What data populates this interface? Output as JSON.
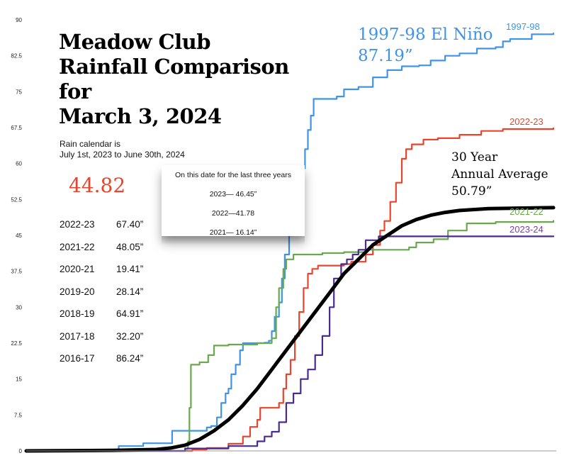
{
  "title": {
    "line1": "Meadow Club",
    "line2": "Rainfall Comparison",
    "line3": "for",
    "line4": "March 3, 2024"
  },
  "subtitle": {
    "line1": "Rain calendar is",
    "line2": "July 1st, 2023 to June 30th, 2024"
  },
  "current_total": "44.82",
  "season_totals": [
    {
      "season": "2022-23",
      "total": "67.40”"
    },
    {
      "season": "2021-22",
      "total": "48.05”"
    },
    {
      "season": "2020-21",
      "total": "19.41”"
    },
    {
      "season": "2019-20",
      "total": "28.14”"
    },
    {
      "season": "2018-19",
      "total": "64.91”"
    },
    {
      "season": "2017-18",
      "total": "32.20”"
    },
    {
      "season": "2016-17",
      "total": "86.24”"
    }
  ],
  "callout": {
    "title": "On this date for the last three years",
    "lines": [
      "2023— 46.45”",
      "2022—41.78",
      "2021— 16.14”"
    ]
  },
  "annotations": {
    "nino_line1": "1997-98 El Niño",
    "nino_line2": "87.19”",
    "avg_line1": "30 Year",
    "avg_line2": "Annual Average",
    "avg_line3": "50.79”"
  },
  "chart_data": {
    "type": "line",
    "title": "Meadow Club Rainfall Comparison for March 3, 2024",
    "xlabel": "",
    "ylabel": "",
    "x_unit": "day of rain season (from July 1)",
    "xlim": [
      0,
      365
    ],
    "ylim": [
      0,
      90
    ],
    "yticks": [
      0,
      7.5,
      15,
      22.5,
      30,
      37.5,
      45,
      52.5,
      60,
      67.5,
      75,
      82.5,
      90
    ],
    "ytick_labels": [
      "0",
      "7.5",
      "15",
      "22.5",
      "30",
      "37.5",
      "45",
      "52.5",
      "60",
      "67.5",
      "75",
      "82.5",
      "90"
    ],
    "series": [
      {
        "name": "1997-98",
        "color": "#3f94e8",
        "points": [
          [
            0,
            0
          ],
          [
            63,
            0
          ],
          [
            64,
            1
          ],
          [
            80,
            1
          ],
          [
            81,
            1.6
          ],
          [
            100,
            1.6
          ],
          [
            101,
            4.2
          ],
          [
            124,
            4.2
          ],
          [
            125,
            4.9
          ],
          [
            128,
            5.2
          ],
          [
            132,
            7
          ],
          [
            135,
            10
          ],
          [
            138,
            12
          ],
          [
            140,
            13
          ],
          [
            142,
            16
          ],
          [
            145,
            18
          ],
          [
            148,
            21
          ],
          [
            150,
            22.5
          ],
          [
            165,
            22.6
          ],
          [
            168,
            23
          ],
          [
            170,
            25
          ],
          [
            172,
            28
          ],
          [
            175,
            31
          ],
          [
            177,
            36
          ],
          [
            179,
            41
          ],
          [
            182,
            45
          ],
          [
            185,
            50
          ],
          [
            188,
            55
          ],
          [
            190,
            59
          ],
          [
            193,
            63
          ],
          [
            195,
            67
          ],
          [
            197,
            70
          ],
          [
            199,
            73.5
          ],
          [
            215,
            74
          ],
          [
            220,
            75.5
          ],
          [
            230,
            76
          ],
          [
            240,
            78
          ],
          [
            250,
            79.5
          ],
          [
            260,
            80.3
          ],
          [
            272,
            80.5
          ],
          [
            280,
            81.5
          ],
          [
            290,
            82.5
          ],
          [
            300,
            83
          ],
          [
            312,
            84
          ],
          [
            325,
            84.3
          ],
          [
            330,
            85.5
          ],
          [
            335,
            86
          ],
          [
            350,
            87
          ],
          [
            365,
            87.19
          ]
        ]
      },
      {
        "name": "2022-23",
        "color": "#e8452c",
        "points": [
          [
            0,
            0
          ],
          [
            100,
            0
          ],
          [
            115,
            0.3
          ],
          [
            125,
            0.6
          ],
          [
            140,
            1.5
          ],
          [
            150,
            3
          ],
          [
            155,
            5
          ],
          [
            160,
            6.5
          ],
          [
            162,
            9
          ],
          [
            170,
            9
          ],
          [
            175,
            10
          ],
          [
            178,
            13
          ],
          [
            180,
            16
          ],
          [
            183,
            19
          ],
          [
            186,
            24
          ],
          [
            189,
            29
          ],
          [
            192,
            34
          ],
          [
            195,
            37
          ],
          [
            198,
            38
          ],
          [
            202,
            38.7
          ],
          [
            215,
            38.7
          ],
          [
            220,
            39
          ],
          [
            225,
            39.5
          ],
          [
            235,
            41
          ],
          [
            240,
            43
          ],
          [
            245,
            46
          ],
          [
            248,
            48
          ],
          [
            252,
            52
          ],
          [
            256,
            56
          ],
          [
            260,
            61
          ],
          [
            263,
            63
          ],
          [
            267,
            64
          ],
          [
            275,
            65
          ],
          [
            285,
            65.3
          ],
          [
            300,
            66
          ],
          [
            315,
            66.8
          ],
          [
            330,
            67.2
          ],
          [
            365,
            67.4
          ]
        ]
      },
      {
        "name": "2021-22",
        "color": "#6aa84f",
        "points": [
          [
            0,
            0
          ],
          [
            80,
            0
          ],
          [
            110,
            0.4
          ],
          [
            112,
            2
          ],
          [
            113,
            9
          ],
          [
            114,
            18
          ],
          [
            120,
            18.5
          ],
          [
            126,
            20
          ],
          [
            130,
            22
          ],
          [
            140,
            22.2
          ],
          [
            160,
            22.5
          ],
          [
            170,
            23.5
          ],
          [
            173,
            30
          ],
          [
            175,
            34
          ],
          [
            178,
            38
          ],
          [
            180,
            40
          ],
          [
            185,
            41
          ],
          [
            200,
            41
          ],
          [
            205,
            41.3
          ],
          [
            220,
            41.5
          ],
          [
            235,
            42
          ],
          [
            250,
            42
          ],
          [
            265,
            42.5
          ],
          [
            270,
            43.5
          ],
          [
            282,
            44.2
          ],
          [
            292,
            46
          ],
          [
            305,
            47.5
          ],
          [
            325,
            47.8
          ],
          [
            365,
            48.05
          ]
        ]
      },
      {
        "name": "2023-24",
        "color": "#4b2a91",
        "points": [
          [
            0,
            0
          ],
          [
            100,
            0
          ],
          [
            110,
            0.5
          ],
          [
            140,
            1
          ],
          [
            150,
            1
          ],
          [
            160,
            2
          ],
          [
            165,
            3
          ],
          [
            170,
            4
          ],
          [
            175,
            6
          ],
          [
            180,
            10
          ],
          [
            185,
            12
          ],
          [
            190,
            15
          ],
          [
            195,
            17
          ],
          [
            200,
            20
          ],
          [
            205,
            24
          ],
          [
            210,
            30
          ],
          [
            213,
            36
          ],
          [
            218,
            39
          ],
          [
            222,
            40
          ],
          [
            226,
            41
          ],
          [
            230,
            42
          ],
          [
            235,
            44
          ],
          [
            244,
            44.8
          ],
          [
            365,
            44.82
          ]
        ]
      },
      {
        "name": "30 Year Annual Average",
        "color": "#000000",
        "points": [
          [
            0,
            0
          ],
          [
            60,
            0.1
          ],
          [
            90,
            0.3
          ],
          [
            100,
            0.6
          ],
          [
            110,
            1.2
          ],
          [
            120,
            2.4
          ],
          [
            130,
            4.2
          ],
          [
            140,
            6.5
          ],
          [
            150,
            9.5
          ],
          [
            160,
            13
          ],
          [
            170,
            17
          ],
          [
            180,
            21
          ],
          [
            190,
            25
          ],
          [
            200,
            29
          ],
          [
            210,
            33
          ],
          [
            220,
            37
          ],
          [
            230,
            40
          ],
          [
            240,
            43
          ],
          [
            250,
            45
          ],
          [
            260,
            47
          ],
          [
            270,
            48.3
          ],
          [
            280,
            49.2
          ],
          [
            290,
            49.8
          ],
          [
            300,
            50.2
          ],
          [
            320,
            50.6
          ],
          [
            365,
            50.79
          ]
        ]
      }
    ],
    "series_labels": [
      "1997-98",
      "2022-23",
      "2021-22",
      "2023-24"
    ]
  }
}
